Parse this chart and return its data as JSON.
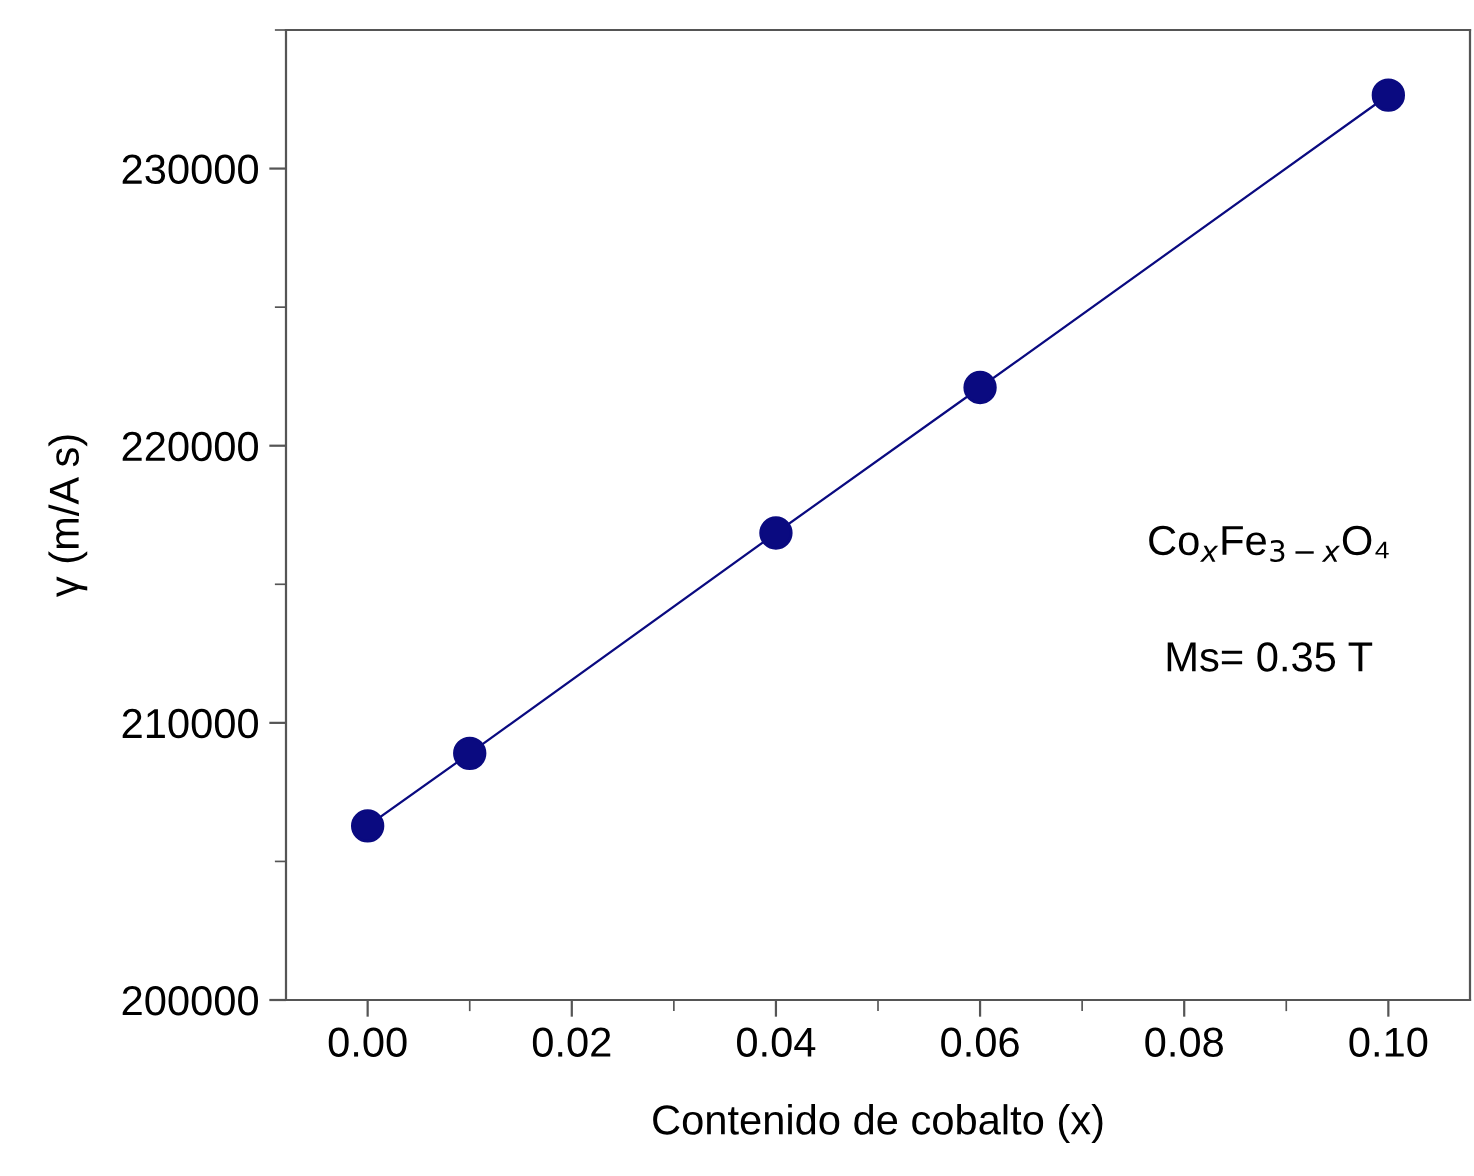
{
  "chart_data": {
    "type": "line",
    "xlabel": "Contenido de cobalto (x)",
    "ylabel": "γ (m/A s)",
    "x": [
      0,
      0.01,
      0.04,
      0.06,
      0.1
    ],
    "series": [
      {
        "color": "#0a0a80",
        "values": [
          206280,
          208900,
          216850,
          222100,
          232650
        ]
      }
    ],
    "marker": "circle",
    "line_style": "solid",
    "grid": false,
    "legend": false,
    "xlim": [
      -0.008,
      0.108
    ],
    "xticks": [
      {
        "value": 0,
        "label": "0.00"
      },
      {
        "value": 0.02,
        "label": "0.02"
      },
      {
        "value": 0.04,
        "label": "0.04"
      },
      {
        "value": 0.06,
        "label": "0.06"
      },
      {
        "value": 0.08,
        "label": "0.08"
      },
      {
        "value": 0.1,
        "label": "0.10"
      }
    ],
    "ylim": [
      200000,
      235000
    ],
    "yticks": [
      200000,
      210000,
      220000,
      230000
    ],
    "annotations": [
      "Co$_{x}$Fe$_{3−x}$O₄",
      "Ms= 0.35 T"
    ]
  }
}
